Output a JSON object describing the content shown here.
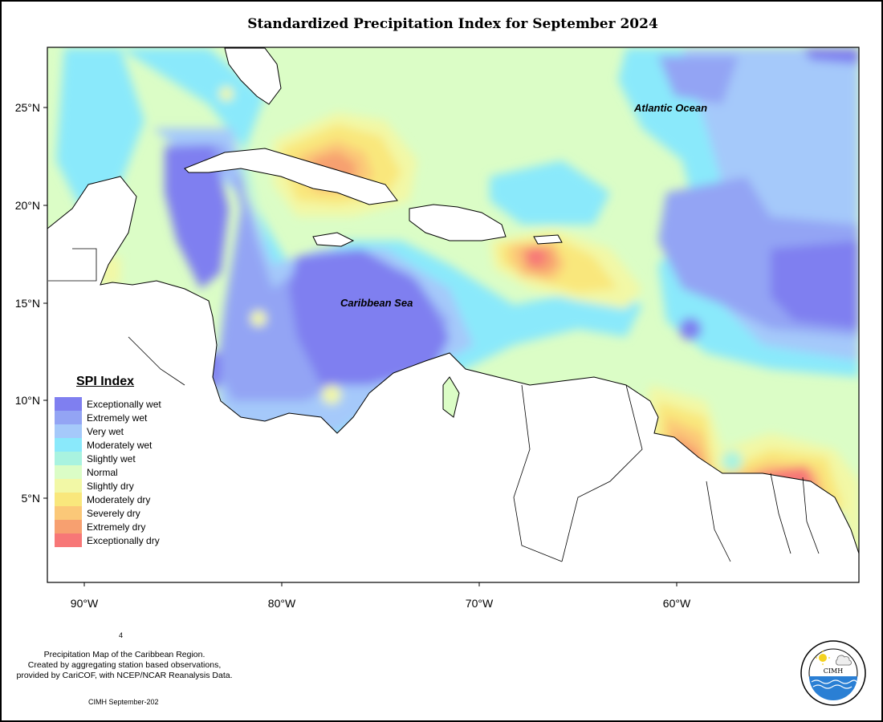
{
  "title": "Standardized Precipitation Index for September 2024",
  "map": {
    "ocean_labels": [
      "Atlantic Ocean",
      "Caribbean Sea"
    ],
    "lat_ticks": [
      "25°N",
      "20°N",
      "15°N",
      "10°N",
      "5°N"
    ],
    "lon_ticks": [
      "90°W",
      "80°W",
      "70°W",
      "60°W"
    ]
  },
  "legend": {
    "title": "SPI Index",
    "items": [
      {
        "label": "Exceptionally wet",
        "color": "#7f7ff0"
      },
      {
        "label": "Extremely wet",
        "color": "#93a4f4"
      },
      {
        "label": "Very wet",
        "color": "#a5c9fa"
      },
      {
        "label": "Moderately wet",
        "color": "#8ae9fb"
      },
      {
        "label": "Slightly wet",
        "color": "#a9f3e0"
      },
      {
        "label": "Normal",
        "color": "#dbfdc6"
      },
      {
        "label": "Slightly dry",
        "color": "#f2f8a6"
      },
      {
        "label": "Moderately dry",
        "color": "#f9e77c"
      },
      {
        "label": "Severely dry",
        "color": "#fbc878"
      },
      {
        "label": "Extremely dry",
        "color": "#f7a070"
      },
      {
        "label": "Exceptionally dry",
        "color": "#f77777"
      }
    ]
  },
  "footer": {
    "page_number": "4",
    "note_lines": [
      "Precipitation Map of the Caribbean Region.",
      "Created by aggregating station based observations,",
      "provided by CariCOF, with NCEP/NCAR Reanalysis Data."
    ],
    "date": "CIMH September-202",
    "logo_text": "CIMH"
  }
}
